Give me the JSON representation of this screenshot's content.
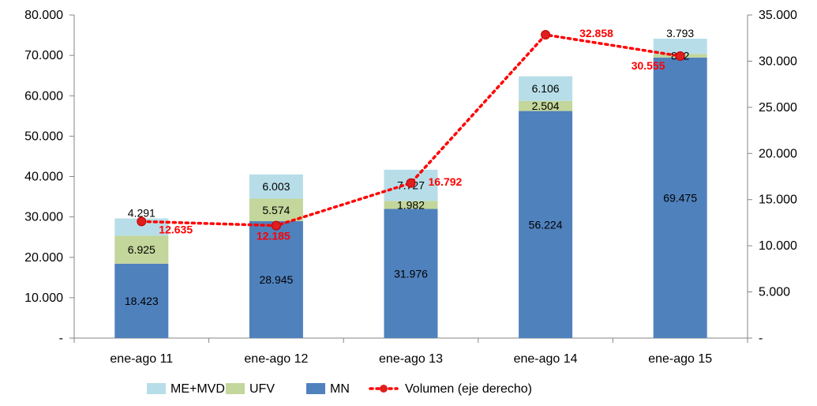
{
  "chart_data": {
    "type": "bar",
    "stacked": true,
    "categories": [
      "ene-ago 11",
      "ene-ago 12",
      "ene-ago 13",
      "ene-ago 14",
      "ene-ago 15"
    ],
    "series": [
      {
        "name": "MN",
        "values": [
          18423,
          28945,
          31976,
          56224,
          69475
        ],
        "labels": [
          "18.423",
          "28.945",
          "31.976",
          "56.224",
          "69.475"
        ],
        "color": "#4f81bd"
      },
      {
        "name": "UFV",
        "values": [
          6925,
          5574,
          1982,
          2504,
          862
        ],
        "labels": [
          "6.925",
          "5.574",
          "1.982",
          "2.504",
          "862"
        ],
        "color": "#c3d69b"
      },
      {
        "name": "ME+MVD",
        "values": [
          4291,
          6003,
          7727,
          6106,
          3793
        ],
        "labels": [
          "4.291",
          "6.003",
          "7.727",
          "6.106",
          "3.793"
        ],
        "color": "#b7dee8"
      }
    ],
    "line_series": {
      "name": "Volumen (eje derecho)",
      "axis": "right",
      "values": [
        12635,
        12185,
        16792,
        32858,
        30555
      ],
      "labels": [
        "12.635",
        "12.185",
        "16.792",
        "32.858",
        "30.555"
      ],
      "color": "#ff0000",
      "label_color": "#ff0000",
      "style": "dotted"
    },
    "left_axis": {
      "ylim": [
        0,
        80000
      ],
      "ticks": [
        0,
        10000,
        20000,
        30000,
        40000,
        50000,
        60000,
        70000,
        80000
      ],
      "tick_labels": [
        "-",
        "10.000",
        "20.000",
        "30.000",
        "40.000",
        "50.000",
        "60.000",
        "70.000",
        "80.000"
      ]
    },
    "right_axis": {
      "ylim": [
        0,
        35000
      ],
      "ticks": [
        0,
        5000,
        10000,
        15000,
        20000,
        25000,
        30000,
        35000
      ],
      "tick_labels": [
        "-",
        "5.000",
        "10.000",
        "15.000",
        "20.000",
        "25.000",
        "30.000",
        "35.000"
      ]
    },
    "grid": false,
    "legend": {
      "position": "bottom",
      "entries": [
        "ME+MVD",
        "UFV",
        "MN",
        "Volumen (eje derecho)"
      ]
    }
  }
}
